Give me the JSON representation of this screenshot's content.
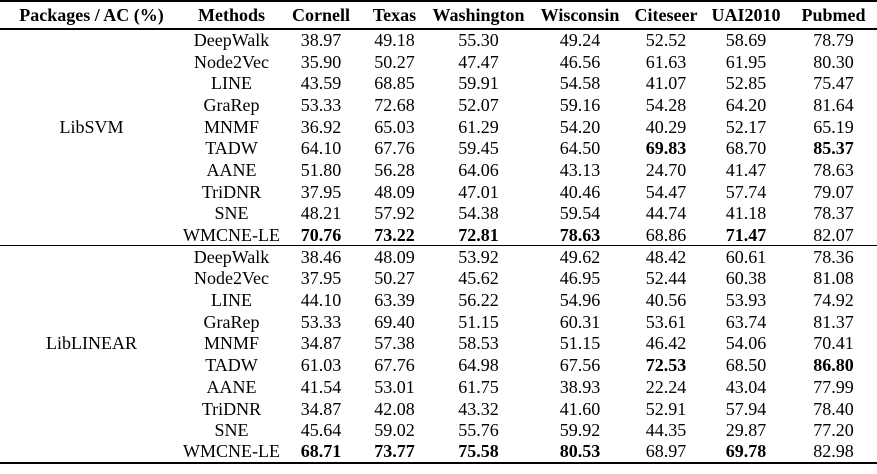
{
  "colors": {
    "text": "#000000",
    "background": "#ffffff",
    "rule": "#000000"
  },
  "table": {
    "headers": [
      "Packages / AC (%)",
      "Methods",
      "Cornell",
      "Texas",
      "Washington",
      "Wisconsin",
      "Citeseer",
      "UAI2010",
      "Pubmed"
    ],
    "groups": [
      {
        "package": "LibSVM",
        "rows": [
          {
            "method": "DeepWalk",
            "values": [
              "38.97",
              "49.18",
              "55.30",
              "49.24",
              "52.52",
              "58.69",
              "78.79"
            ],
            "bold": []
          },
          {
            "method": "Node2Vec",
            "values": [
              "35.90",
              "50.27",
              "47.47",
              "46.56",
              "61.63",
              "61.95",
              "80.30"
            ],
            "bold": []
          },
          {
            "method": "LINE",
            "values": [
              "43.59",
              "68.85",
              "59.91",
              "54.58",
              "41.07",
              "52.85",
              "75.47"
            ],
            "bold": []
          },
          {
            "method": "GraRep",
            "values": [
              "53.33",
              "72.68",
              "52.07",
              "59.16",
              "54.28",
              "64.20",
              "81.64"
            ],
            "bold": []
          },
          {
            "method": "MNMF",
            "values": [
              "36.92",
              "65.03",
              "61.29",
              "54.20",
              "40.29",
              "52.17",
              "65.19"
            ],
            "bold": []
          },
          {
            "method": "TADW",
            "values": [
              "64.10",
              "67.76",
              "59.45",
              "64.50",
              "69.83",
              "68.70",
              "85.37"
            ],
            "bold": [
              4,
              6
            ]
          },
          {
            "method": "AANE",
            "values": [
              "51.80",
              "56.28",
              "64.06",
              "43.13",
              "24.70",
              "41.47",
              "78.63"
            ],
            "bold": []
          },
          {
            "method": "TriDNR",
            "values": [
              "37.95",
              "48.09",
              "47.01",
              "40.46",
              "54.47",
              "57.74",
              "79.07"
            ],
            "bold": []
          },
          {
            "method": "SNE",
            "values": [
              "48.21",
              "57.92",
              "54.38",
              "59.54",
              "44.74",
              "41.18",
              "78.37"
            ],
            "bold": []
          },
          {
            "method": "WMCNE-LE",
            "values": [
              "70.76",
              "73.22",
              "72.81",
              "78.63",
              "68.86",
              "71.47",
              "82.07"
            ],
            "bold": [
              0,
              1,
              2,
              3,
              5
            ]
          }
        ]
      },
      {
        "package": "LibLINEAR",
        "rows": [
          {
            "method": "DeepWalk",
            "values": [
              "38.46",
              "48.09",
              "53.92",
              "49.62",
              "48.42",
              "60.61",
              "78.36"
            ],
            "bold": []
          },
          {
            "method": "Node2Vec",
            "values": [
              "37.95",
              "50.27",
              "45.62",
              "46.95",
              "52.44",
              "60.38",
              "81.08"
            ],
            "bold": []
          },
          {
            "method": "LINE",
            "values": [
              "44.10",
              "63.39",
              "56.22",
              "54.96",
              "40.56",
              "53.93",
              "74.92"
            ],
            "bold": []
          },
          {
            "method": "GraRep",
            "values": [
              "53.33",
              "69.40",
              "51.15",
              "60.31",
              "53.61",
              "63.74",
              "81.37"
            ],
            "bold": []
          },
          {
            "method": "MNMF",
            "values": [
              "34.87",
              "57.38",
              "58.53",
              "51.15",
              "46.42",
              "54.06",
              "70.41"
            ],
            "bold": []
          },
          {
            "method": "TADW",
            "values": [
              "61.03",
              "67.76",
              "64.98",
              "67.56",
              "72.53",
              "68.50",
              "86.80"
            ],
            "bold": [
              4,
              6
            ]
          },
          {
            "method": "AANE",
            "values": [
              "41.54",
              "53.01",
              "61.75",
              "38.93",
              "22.24",
              "43.04",
              "77.99"
            ],
            "bold": []
          },
          {
            "method": "TriDNR",
            "values": [
              "34.87",
              "42.08",
              "43.32",
              "41.60",
              "52.91",
              "57.94",
              "78.40"
            ],
            "bold": []
          },
          {
            "method": "SNE",
            "values": [
              "45.64",
              "59.02",
              "55.76",
              "59.92",
              "44.35",
              "29.87",
              "77.20"
            ],
            "bold": []
          },
          {
            "method": "WMCNE-LE",
            "values": [
              "68.71",
              "73.77",
              "75.58",
              "80.53",
              "68.97",
              "69.78",
              "82.98"
            ],
            "bold": [
              0,
              1,
              2,
              3,
              5
            ]
          }
        ]
      }
    ]
  }
}
